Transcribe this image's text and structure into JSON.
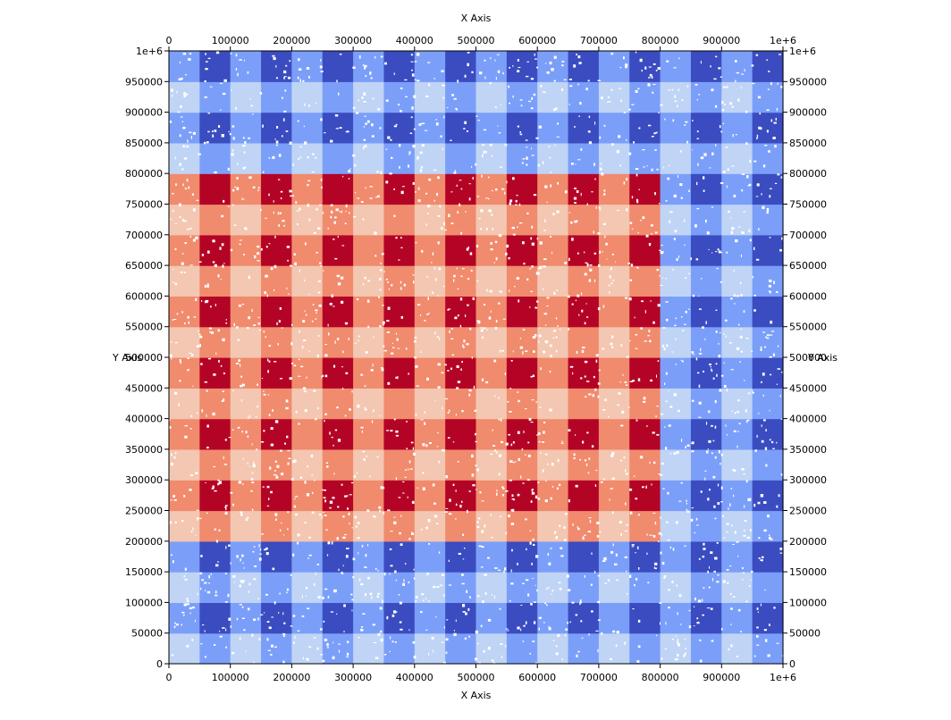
{
  "chart_data": {
    "type": "heatmap",
    "title": "",
    "xlabel": "X Axis",
    "ylabel": "Y Axis",
    "top_xlabel": "X Axis",
    "right_ylabel": "Y Axis",
    "xlim": [
      0,
      1000000
    ],
    "ylim": [
      0,
      1000000
    ],
    "grid": false,
    "x_ticks": [
      0,
      100000,
      200000,
      300000,
      400000,
      500000,
      600000,
      700000,
      800000,
      900000,
      1000000
    ],
    "x_tick_labels": [
      "0",
      "100000",
      "200000",
      "300000",
      "400000",
      "500000",
      "600000",
      "700000",
      "800000",
      "900000",
      "1e+6"
    ],
    "y_ticks": [
      0,
      50000,
      100000,
      150000,
      200000,
      250000,
      300000,
      350000,
      400000,
      450000,
      500000,
      550000,
      600000,
      650000,
      700000,
      750000,
      800000,
      850000,
      900000,
      950000,
      1000000
    ],
    "y_tick_labels": [
      "0",
      "50000",
      "100000",
      "150000",
      "200000",
      "250000",
      "300000",
      "350000",
      "400000",
      "450000",
      "500000",
      "550000",
      "600000",
      "650000",
      "700000",
      "750000",
      "800000",
      "850000",
      "900000",
      "950000",
      "1e+6"
    ],
    "cell_size": 50000,
    "grid_cols": 20,
    "grid_rows": 20,
    "red_region": {
      "x": [
        0,
        800000
      ],
      "y": [
        200000,
        800000
      ]
    },
    "palette": {
      "blue_dark": "#3b4cc0",
      "blue_mid": "#7b9ff9",
      "blue_light": "#c0d4f5",
      "red_dark": "#b40426",
      "red_mid": "#f08b6e",
      "red_light": "#f3c7b1"
    }
  }
}
